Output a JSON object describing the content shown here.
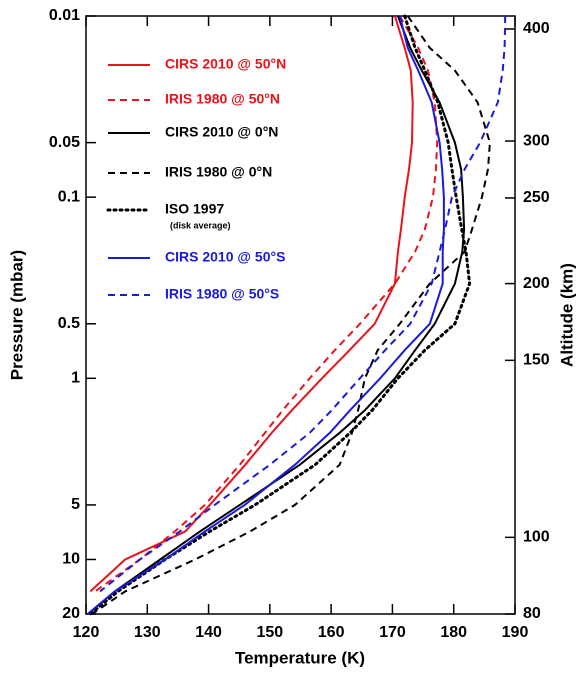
{
  "chart_data": {
    "type": "line",
    "x_label": "Temperature (K)",
    "y_label": "Pressure (mbar)",
    "y2_label": "Altitude (km)",
    "xlim": [
      120,
      190
    ],
    "xticks": [
      120,
      130,
      140,
      150,
      160,
      170,
      180,
      190
    ],
    "ylim": [
      0.01,
      20
    ],
    "y_log": true,
    "y_inverted": true,
    "yticks": [
      0.01,
      0.05,
      0.1,
      0.5,
      1,
      5,
      10,
      20
    ],
    "y2ticks": [
      80,
      100,
      150,
      200,
      250,
      300,
      400
    ],
    "y2tick_pressures": [
      20,
      7.55,
      0.796,
      0.3,
      0.101,
      0.049,
      0.0118
    ],
    "pressure": [
      0.01,
      0.015,
      0.02,
      0.03,
      0.05,
      0.07,
      0.1,
      0.15,
      0.2,
      0.3,
      0.5,
      0.7,
      1,
      1.5,
      2,
      3,
      5,
      7,
      10,
      15,
      20
    ],
    "series": [
      {
        "name": "CIRS 2010 @ 50°N",
        "color": "#e8141b",
        "style": "solid",
        "values": [
          170.4,
          172,
          173,
          173.3,
          173.2,
          172.7,
          172,
          171.4,
          170.9,
          170.4,
          167.1,
          163,
          158.5,
          153.6,
          150.3,
          146,
          140.2,
          136.2,
          126.4,
          120.7,
          null
        ]
      },
      {
        "name": "IRIS 1980 @ 50°N",
        "color": "#e8141b",
        "style": "dashed",
        "values": [
          171.2,
          174.2,
          175.8,
          176.9,
          177.3,
          177.1,
          176.6,
          175.3,
          173.7,
          170.4,
          164.7,
          160.6,
          156.5,
          152.1,
          149.2,
          145.1,
          139.4,
          134.5,
          128.8,
          121.5,
          null
        ]
      },
      {
        "name": "CIRS 2010 @ 0°N",
        "color": "#000000",
        "style": "solid",
        "values": [
          170.9,
          172.9,
          174.8,
          177.7,
          180.2,
          181.2,
          181.5,
          181.7,
          181.4,
          180.2,
          176.9,
          173.7,
          170.4,
          165.5,
          161.4,
          154.9,
          145.1,
          138.6,
          132.1,
          124.7,
          120.3
        ]
      },
      {
        "name": "IRIS 1980 @ 0°N",
        "color": "#000000",
        "style": "dashed",
        "values": [
          172.5,
          176.1,
          180.2,
          183.9,
          185.9,
          185.6,
          184.6,
          183,
          181.8,
          176.1,
          171.2,
          167.6,
          165.5,
          164.4,
          163.4,
          161.4,
          154.1,
          146.8,
          137.8,
          126.4,
          121
        ]
      },
      {
        "name": "ISO 1997",
        "note": "(disk average)",
        "color": "#000000",
        "style": "dotted",
        "values": [
          172,
          173.7,
          175.3,
          177.4,
          179.1,
          179.7,
          180.4,
          181.3,
          182,
          182.6,
          180.2,
          175.3,
          170.9,
          166.7,
          163.1,
          157.4,
          147.6,
          140.2,
          132.9,
          125.2,
          120.7
        ]
      },
      {
        "name": "CIRS 2010 @ 50°S",
        "color": "#1a1adb",
        "style": "solid",
        "values": [
          171.2,
          172.5,
          174.2,
          176.4,
          177.7,
          178.1,
          178.4,
          178.4,
          178.2,
          178.2,
          176.1,
          172,
          168,
          163.1,
          159.8,
          154.1,
          145.9,
          139.4,
          132.9,
          124.7,
          120.3
        ]
      },
      {
        "name": "IRIS 1980 @ 50°S",
        "color": "#1a1adb",
        "style": "dashed",
        "values": [
          188.4,
          188.3,
          188,
          187.2,
          184.3,
          181.8,
          179.7,
          178.6,
          177.7,
          176.4,
          172.9,
          168.8,
          164.7,
          160.1,
          156.5,
          150,
          141,
          135.3,
          128.8,
          122.3,
          null
        ]
      }
    ]
  }
}
